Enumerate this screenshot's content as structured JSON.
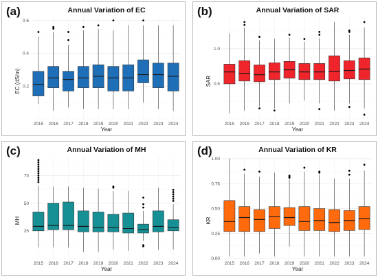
{
  "figure": {
    "panels": [
      {
        "letter": "(a)"
      },
      {
        "letter": "(b)"
      },
      {
        "letter": "(c)"
      },
      {
        "letter": "(d)"
      }
    ]
  },
  "chart_data": [
    {
      "type": "boxplot",
      "title": "Annual Variation of EC",
      "xlabel": "Year",
      "ylabel": "EC (dS/m)",
      "ylim": [
        0.0,
        0.62
      ],
      "yticks": [
        0.2,
        0.4,
        0.6
      ],
      "ytick_labels": [
        "0.2",
        "0.4",
        "0.6"
      ],
      "grid": true,
      "color": "#1f6fb8",
      "categories": [
        "2015",
        "2016",
        "2017",
        "2018",
        "2019",
        "2020",
        "2021",
        "2022",
        "2023",
        "2024"
      ],
      "boxes": [
        {
          "lower_whisker": 0.09,
          "q1": 0.14,
          "median": 0.21,
          "q3": 0.29,
          "upper_whisker": 0.5,
          "outliers": [
            0.53
          ]
        },
        {
          "lower_whisker": 0.05,
          "q1": 0.19,
          "median": 0.25,
          "q3": 0.32,
          "upper_whisker": 0.53,
          "outliers": [
            0.55,
            0.56
          ]
        },
        {
          "lower_whisker": 0.07,
          "q1": 0.17,
          "median": 0.24,
          "q3": 0.29,
          "upper_whisker": 0.45,
          "outliers": [
            0.48,
            0.53
          ]
        },
        {
          "lower_whisker": 0.06,
          "q1": 0.19,
          "median": 0.25,
          "q3": 0.32,
          "upper_whisker": 0.54,
          "outliers": [
            0.56
          ]
        },
        {
          "lower_whisker": 0.06,
          "q1": 0.19,
          "median": 0.26,
          "q3": 0.33,
          "upper_whisker": 0.55,
          "outliers": [
            0.57
          ]
        },
        {
          "lower_whisker": 0.06,
          "q1": 0.17,
          "median": 0.25,
          "q3": 0.32,
          "upper_whisker": 0.54,
          "outliers": [
            0.6
          ]
        },
        {
          "lower_whisker": 0.06,
          "q1": 0.17,
          "median": 0.25,
          "q3": 0.33,
          "upper_whisker": 0.57,
          "outliers": []
        },
        {
          "lower_whisker": 0.1,
          "q1": 0.22,
          "median": 0.27,
          "q3": 0.36,
          "upper_whisker": 0.57,
          "outliers": [
            0.6
          ]
        },
        {
          "lower_whisker": 0.06,
          "q1": 0.19,
          "median": 0.27,
          "q3": 0.34,
          "upper_whisker": 0.57,
          "outliers": []
        },
        {
          "lower_whisker": 0.05,
          "q1": 0.17,
          "median": 0.26,
          "q3": 0.34,
          "upper_whisker": 0.57,
          "outliers": []
        }
      ]
    },
    {
      "type": "boxplot",
      "title": "Annual Variation of SAR",
      "xlabel": "Year",
      "ylabel": "SAR",
      "ylim": [
        0.0,
        1.45
      ],
      "yticks": [
        0.5,
        1.0
      ],
      "ytick_labels": [
        "0.5",
        "1.0"
      ],
      "grid": true,
      "color": "#f0252b",
      "categories": [
        "2015",
        "2016",
        "2017",
        "2018",
        "2019",
        "2020",
        "2021",
        "2022",
        "2023",
        "2024"
      ],
      "boxes": [
        {
          "lower_whisker": 0.08,
          "q1": 0.5,
          "median": 0.67,
          "q3": 0.78,
          "upper_whisker": 1.22,
          "outliers": []
        },
        {
          "lower_whisker": 0.12,
          "q1": 0.54,
          "median": 0.65,
          "q3": 0.83,
          "upper_whisker": 1.3,
          "outliers": [
            1.34,
            1.38
          ]
        },
        {
          "lower_whisker": 0.18,
          "q1": 0.53,
          "median": 0.63,
          "q3": 0.77,
          "upper_whisker": 1.12,
          "outliers": [
            1.17,
            0.15
          ]
        },
        {
          "lower_whisker": 0.15,
          "q1": 0.56,
          "median": 0.67,
          "q3": 0.8,
          "upper_whisker": 1.14,
          "outliers": [
            0.12
          ]
        },
        {
          "lower_whisker": 0.22,
          "q1": 0.58,
          "median": 0.7,
          "q3": 0.82,
          "upper_whisker": 1.16,
          "outliers": [
            1.2
          ]
        },
        {
          "lower_whisker": 0.26,
          "q1": 0.56,
          "median": 0.67,
          "q3": 0.79,
          "upper_whisker": 1.1,
          "outliers": [
            1.14
          ]
        },
        {
          "lower_whisker": 0.22,
          "q1": 0.56,
          "median": 0.67,
          "q3": 0.79,
          "upper_whisker": 1.15,
          "outliers": [
            1.2,
            1.24,
            0.14
          ]
        },
        {
          "lower_whisker": 0.12,
          "q1": 0.54,
          "median": 0.68,
          "q3": 0.9,
          "upper_whisker": 1.38,
          "outliers": []
        },
        {
          "lower_whisker": 0.22,
          "q1": 0.57,
          "median": 0.69,
          "q3": 0.83,
          "upper_whisker": 1.2,
          "outliers": [
            1.24,
            1.26,
            0.17
          ]
        },
        {
          "lower_whisker": 0.15,
          "q1": 0.56,
          "median": 0.71,
          "q3": 0.87,
          "upper_whisker": 1.3,
          "outliers": [
            1.38,
            0.06
          ]
        }
      ]
    },
    {
      "type": "boxplot",
      "title": "Annual Variation of MH",
      "xlabel": "Year",
      "ylabel": "MH",
      "ylim": [
        0,
        92
      ],
      "yticks": [
        25,
        50,
        75
      ],
      "ytick_labels": [
        "25",
        "50",
        "75"
      ],
      "grid": true,
      "color": "#168f95",
      "categories": [
        "2015",
        "2016",
        "2017",
        "2018",
        "2019",
        "2020",
        "2021",
        "2022",
        "2023",
        "2024"
      ],
      "boxes": [
        {
          "lower_whisker": 10,
          "q1": 25,
          "median": 29,
          "q3": 42,
          "upper_whisker": 66,
          "outliers": [
            69,
            71,
            73,
            75,
            77,
            79,
            81,
            83,
            85,
            87,
            89
          ]
        },
        {
          "lower_whisker": 10,
          "q1": 26,
          "median": 30,
          "q3": 50,
          "upper_whisker": 65,
          "outliers": []
        },
        {
          "lower_whisker": 10,
          "q1": 26,
          "median": 30,
          "q3": 51,
          "upper_whisker": 65,
          "outliers": []
        },
        {
          "lower_whisker": 6,
          "q1": 24,
          "median": 29,
          "q3": 43,
          "upper_whisker": 64,
          "outliers": []
        },
        {
          "lower_whisker": 6,
          "q1": 24,
          "median": 28,
          "q3": 42,
          "upper_whisker": 63,
          "outliers": []
        },
        {
          "lower_whisker": 8,
          "q1": 24,
          "median": 28,
          "q3": 40,
          "upper_whisker": 61,
          "outliers": [
            64,
            65
          ]
        },
        {
          "lower_whisker": 7,
          "q1": 23,
          "median": 27,
          "q3": 41,
          "upper_whisker": 61,
          "outliers": []
        },
        {
          "lower_whisker": 16,
          "q1": 23,
          "median": 26,
          "q3": 31,
          "upper_whisker": 43,
          "outliers": [
            46,
            49,
            55,
            11,
            12
          ]
        },
        {
          "lower_whisker": 8,
          "q1": 24,
          "median": 29,
          "q3": 43,
          "upper_whisker": 64,
          "outliers": []
        },
        {
          "lower_whisker": 8,
          "q1": 25,
          "median": 28,
          "q3": 35,
          "upper_whisker": 49,
          "outliers": [
            52,
            54,
            56,
            58,
            60,
            62
          ]
        }
      ]
    },
    {
      "type": "boxplot",
      "title": "Annual Variation of KR",
      "xlabel": "Year",
      "ylabel": "KR",
      "ylim": [
        0.0,
        1.02
      ],
      "yticks": [
        0.0,
        0.25,
        0.5,
        0.75,
        1.0
      ],
      "ytick_labels": [
        "0.00",
        "0.25",
        "0.50",
        "0.75",
        "1.00"
      ],
      "grid": true,
      "color": "#ff6a0c",
      "categories": [
        "2015",
        "2016",
        "2017",
        "2018",
        "2019",
        "2020",
        "2021",
        "2022",
        "2023",
        "2024"
      ],
      "boxes": [
        {
          "lower_whisker": 0.02,
          "q1": 0.27,
          "median": 0.37,
          "q3": 0.58,
          "upper_whisker": 1.0,
          "outliers": []
        },
        {
          "lower_whisker": 0.02,
          "q1": 0.27,
          "median": 0.41,
          "q3": 0.52,
          "upper_whisker": 0.85,
          "outliers": [
            0.89
          ]
        },
        {
          "lower_whisker": 0.05,
          "q1": 0.27,
          "median": 0.39,
          "q3": 0.49,
          "upper_whisker": 0.82,
          "outliers": [
            0.87
          ]
        },
        {
          "lower_whisker": 0.02,
          "q1": 0.3,
          "median": 0.42,
          "q3": 0.52,
          "upper_whisker": 0.86,
          "outliers": []
        },
        {
          "lower_whisker": 0.12,
          "q1": 0.33,
          "median": 0.41,
          "q3": 0.51,
          "upper_whisker": 0.79,
          "outliers": [
            0.81,
            0.82,
            0.83
          ]
        },
        {
          "lower_whisker": 0.02,
          "q1": 0.28,
          "median": 0.37,
          "q3": 0.52,
          "upper_whisker": 0.87,
          "outliers": [
            0.91
          ]
        },
        {
          "lower_whisker": 0.02,
          "q1": 0.28,
          "median": 0.38,
          "q3": 0.5,
          "upper_whisker": 0.84,
          "outliers": [
            0.86,
            0.87
          ]
        },
        {
          "lower_whisker": 0.02,
          "q1": 0.27,
          "median": 0.36,
          "q3": 0.49,
          "upper_whisker": 0.8,
          "outliers": []
        },
        {
          "lower_whisker": 0.02,
          "q1": 0.28,
          "median": 0.38,
          "q3": 0.48,
          "upper_whisker": 0.8,
          "outliers": [
            0.84,
            0.88
          ]
        },
        {
          "lower_whisker": 0.02,
          "q1": 0.29,
          "median": 0.4,
          "q3": 0.52,
          "upper_whisker": 0.88,
          "outliers": [
            0.94
          ]
        }
      ]
    }
  ]
}
